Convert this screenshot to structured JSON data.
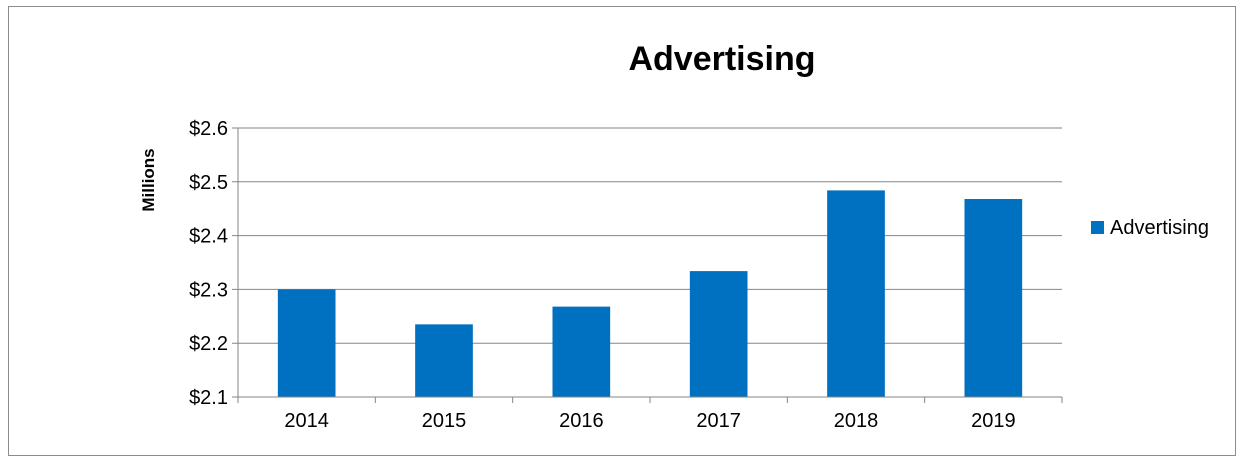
{
  "chart_data": {
    "type": "bar",
    "title": "Advertising",
    "ylabel": "Millions",
    "xlabel": "",
    "categories": [
      "2014",
      "2015",
      "2016",
      "2017",
      "2018",
      "2019"
    ],
    "series": [
      {
        "name": "Advertising",
        "values": [
          2.3,
          2.235,
          2.268,
          2.334,
          2.484,
          2.468
        ]
      }
    ],
    "ylim": [
      2.1,
      2.6
    ],
    "yticks": [
      2.1,
      2.2,
      2.3,
      2.4,
      2.5,
      2.6
    ],
    "ytick_labels": [
      "$2.1",
      "$2.2",
      "$2.3",
      "$2.4",
      "$2.5",
      "$2.6"
    ],
    "grid": true,
    "legend_position": "right",
    "colors": {
      "bar": "#0070C0",
      "grid": "#868686",
      "axis": "#868686",
      "text": "#000000"
    }
  }
}
